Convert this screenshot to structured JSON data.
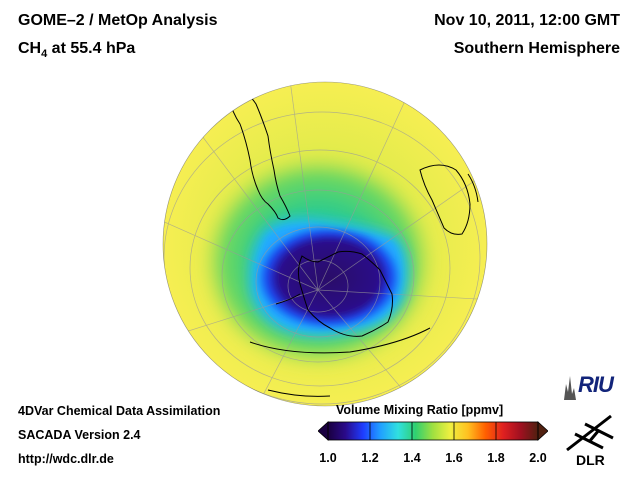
{
  "header": {
    "title": "GOME–2 / MetOp Analysis",
    "species_main": "CH",
    "species_sub": "4",
    "species_rest": " at 55.4 hPa",
    "datetime": "Nov 10, 2011, 12:00 GMT",
    "hemisphere": "Southern Hemisphere"
  },
  "footer": {
    "line1": "4DVar Chemical Data Assimilation",
    "line2": "SACADA Version 2.4",
    "line3": "http://wdc.dlr.de"
  },
  "colorbar": {
    "title": "Volume Mixing Ratio [ppmv]",
    "min": 1.0,
    "max": 2.0,
    "ticks": [
      {
        "value": 1.0,
        "label": "1.0"
      },
      {
        "value": 1.2,
        "label": "1.2"
      },
      {
        "value": 1.4,
        "label": "1.4"
      },
      {
        "value": 1.6,
        "label": "1.6"
      },
      {
        "value": 1.8,
        "label": "1.8"
      },
      {
        "value": 2.0,
        "label": "2.0"
      }
    ],
    "colors": [
      "#1a0040",
      "#2a0a8a",
      "#1e3cff",
      "#20a0ff",
      "#30e0e0",
      "#30d070",
      "#a0e040",
      "#f0f040",
      "#ffc020",
      "#ff6000",
      "#e02020",
      "#a01020",
      "#502010"
    ]
  },
  "map": {
    "low_value_color": "#2a0a70",
    "mid_value_color": "#22c8f0",
    "high_value_color": "#f2ef4a"
  },
  "logos": {
    "riu": "RIU",
    "dlr": "DLR"
  }
}
